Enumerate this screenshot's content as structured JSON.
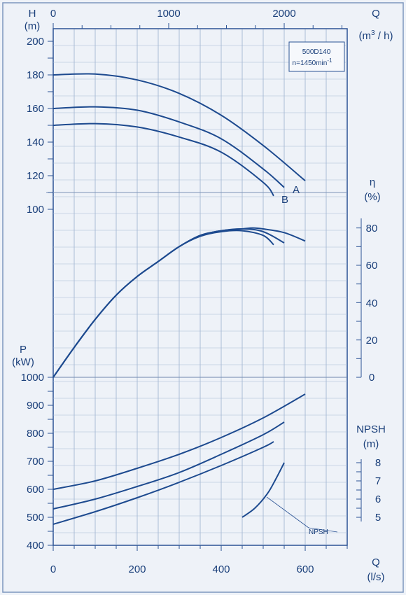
{
  "chart_data": {
    "type": "line",
    "model_box": {
      "model": "500D140",
      "speed": "n=1450min",
      "speed_exp": "-1"
    },
    "axes": {
      "q_bottom": {
        "label": "Q",
        "unit": "(l/s)",
        "ticks": [
          "0",
          "200",
          "400",
          "600"
        ],
        "range": [
          0,
          700
        ]
      },
      "q_top": {
        "label": "Q",
        "unit_pre": "(m",
        "unit_exp": "3",
        "unit_post": " / h)",
        "ticks": [
          "0",
          "1000",
          "2000"
        ]
      },
      "head": {
        "label": "H",
        "unit": "(m)",
        "ticks": [
          "100",
          "120",
          "140",
          "160",
          "180",
          "200"
        ],
        "range": [
          100,
          200
        ]
      },
      "efficiency": {
        "label": "η",
        "unit": "(%)",
        "ticks": [
          "0",
          "20",
          "40",
          "60",
          "80"
        ],
        "range": [
          0,
          90
        ]
      },
      "power": {
        "label": "P",
        "unit": "(kW)",
        "ticks": [
          "400",
          "500",
          "600",
          "700",
          "800",
          "900",
          "1000"
        ],
        "range": [
          400,
          1000
        ]
      },
      "npsh": {
        "label": "NPSH",
        "unit": "(m)",
        "ticks": [
          "5",
          "6",
          "7",
          "8"
        ],
        "range": [
          5,
          8
        ]
      }
    },
    "head_curves": [
      {
        "name": "A",
        "q": [
          0,
          100,
          200,
          300,
          400,
          500,
          600
        ],
        "h": [
          180,
          180.5,
          177,
          169,
          156,
          138,
          117
        ]
      },
      {
        "name": "",
        "q": [
          0,
          100,
          200,
          300,
          400,
          500,
          550
        ],
        "h": [
          160,
          161,
          159,
          152,
          142,
          124,
          113
        ]
      },
      {
        "name": "B",
        "q": [
          0,
          100,
          200,
          300,
          400,
          500,
          525
        ],
        "h": [
          150,
          151,
          149,
          143,
          134,
          116,
          108
        ]
      }
    ],
    "efficiency_curves": [
      {
        "q": [
          0,
          50,
          100,
          150,
          200,
          250,
          300,
          350,
          400,
          450,
          475,
          500,
          550,
          600
        ],
        "eta": [
          0,
          16,
          31,
          44,
          54,
          62,
          70,
          76,
          78.5,
          79.5,
          80,
          79.5,
          77.5,
          73
        ]
      },
      {
        "q": [
          0,
          50,
          100,
          150,
          200,
          250,
          300,
          350,
          400,
          450,
          500,
          550
        ],
        "eta": [
          0,
          16,
          31,
          44,
          54,
          62,
          70,
          76,
          78.5,
          79.5,
          78,
          72
        ]
      },
      {
        "q": [
          0,
          50,
          100,
          150,
          200,
          250,
          300,
          350,
          400,
          450,
          500,
          525
        ],
        "eta": [
          0,
          16,
          31,
          44,
          54,
          62,
          70,
          75.5,
          78,
          78.5,
          76,
          71
        ]
      }
    ],
    "power_curves": [
      {
        "q": [
          0,
          100,
          200,
          300,
          400,
          500,
          600
        ],
        "p": [
          600,
          630,
          675,
          725,
          785,
          855,
          940
        ]
      },
      {
        "q": [
          0,
          100,
          200,
          300,
          400,
          500,
          550
        ],
        "p": [
          530,
          565,
          610,
          660,
          725,
          795,
          840
        ]
      },
      {
        "q": [
          0,
          100,
          200,
          300,
          400,
          500,
          525
        ],
        "p": [
          475,
          520,
          570,
          625,
          685,
          750,
          770
        ]
      }
    ],
    "npsh_curve": {
      "name": "NPSH",
      "q": [
        450,
        480,
        510,
        530,
        550
      ],
      "npsh": [
        5,
        5.5,
        6.3,
        7.1,
        8
      ]
    }
  }
}
